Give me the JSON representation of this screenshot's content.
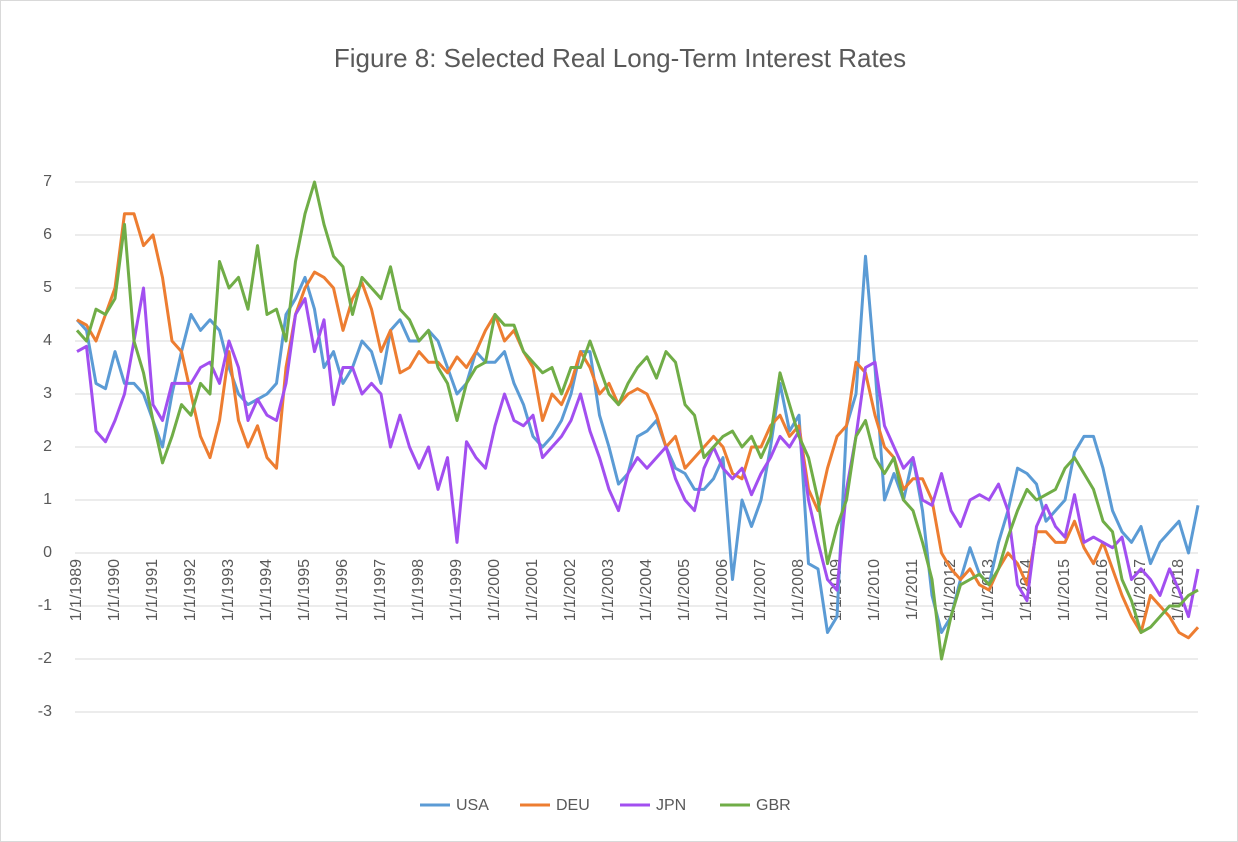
{
  "chart_data": {
    "type": "line",
    "title": "Figure 8: Selected Real Long-Term Interest Rates",
    "categories": [
      "1/1/1989",
      null,
      null,
      null,
      "1/1/1990",
      null,
      null,
      null,
      "1/1/1991",
      null,
      null,
      null,
      "1/1/1992",
      null,
      null,
      null,
      "1/1/1993",
      null,
      null,
      null,
      "1/1/1994",
      null,
      null,
      null,
      "1/1/1995",
      null,
      null,
      null,
      "1/1/1996",
      null,
      null,
      null,
      "1/1/1997",
      null,
      null,
      null,
      "1/1/1998",
      null,
      null,
      null,
      "1/1/1999",
      null,
      null,
      null,
      "1/1/2000",
      null,
      null,
      null,
      "1/1/2001",
      null,
      null,
      null,
      "1/1/2002",
      null,
      null,
      null,
      "1/1/2003",
      null,
      null,
      null,
      "1/1/2004",
      null,
      null,
      null,
      "1/1/2005",
      null,
      null,
      null,
      "1/1/2006",
      null,
      null,
      null,
      "1/1/2007",
      null,
      null,
      null,
      "1/1/2008",
      null,
      null,
      null,
      "1/1/2009",
      null,
      null,
      null,
      "1/1/2010",
      null,
      null,
      null,
      "1/1/2011",
      null,
      null,
      null,
      "1/1/2012",
      null,
      null,
      null,
      "1/1/2013",
      null,
      null,
      null,
      "1/1/2014",
      null,
      null,
      null,
      "1/1/2015",
      null,
      null,
      null,
      "1/1/2016",
      null,
      null,
      null,
      "1/1/2017",
      null,
      null,
      null,
      "1/1/2018",
      null,
      null
    ],
    "series": [
      {
        "name": "USA",
        "color": "#5b9bd5",
        "values": [
          4.4,
          4.2,
          3.2,
          3.1,
          3.8,
          3.2,
          3.2,
          3.0,
          2.5,
          2.0,
          3.0,
          3.8,
          4.5,
          4.2,
          4.4,
          4.2,
          3.5,
          3.0,
          2.8,
          2.9,
          3.0,
          3.2,
          4.5,
          4.8,
          5.2,
          4.6,
          3.5,
          3.8,
          3.2,
          3.5,
          4.0,
          3.8,
          3.2,
          4.2,
          4.4,
          4.0,
          4.0,
          4.2,
          4.0,
          3.5,
          3.0,
          3.2,
          3.8,
          3.6,
          3.6,
          3.8,
          3.2,
          2.8,
          2.2,
          2.0,
          2.2,
          2.5,
          3.0,
          3.8,
          3.8,
          2.6,
          2.0,
          1.3,
          1.5,
          2.2,
          2.3,
          2.5,
          2.0,
          1.6,
          1.5,
          1.2,
          1.2,
          1.4,
          1.8,
          -0.5,
          1.0,
          0.5,
          1.0,
          2.0,
          3.2,
          2.3,
          2.6,
          -0.2,
          -0.3,
          -1.5,
          -1.2,
          2.4,
          3.0,
          5.6,
          3.5,
          1.0,
          1.5,
          1.0,
          1.8,
          0.8,
          -0.8,
          -1.5,
          -1.2,
          -0.5,
          0.1,
          -0.4,
          -0.6,
          0.2,
          0.8,
          1.6,
          1.5,
          1.3,
          0.6,
          0.8,
          1.0,
          1.9,
          2.2,
          2.2,
          1.6,
          0.8,
          0.4,
          0.2,
          0.5,
          -0.2,
          0.2,
          0.4,
          0.6,
          0.0,
          0.9
        ]
      },
      {
        "name": "DEU",
        "color": "#ed7d31",
        "values": [
          4.4,
          4.3,
          4.0,
          4.5,
          5.0,
          6.4,
          6.4,
          5.8,
          6.0,
          5.2,
          4.0,
          3.8,
          3.0,
          2.2,
          1.8,
          2.5,
          3.8,
          2.5,
          2.0,
          2.4,
          1.8,
          1.6,
          3.5,
          4.5,
          5.0,
          5.3,
          5.2,
          5.0,
          4.2,
          4.8,
          5.1,
          4.6,
          3.8,
          4.2,
          3.4,
          3.5,
          3.8,
          3.6,
          3.6,
          3.4,
          3.7,
          3.5,
          3.8,
          4.2,
          4.5,
          4.0,
          4.2,
          3.8,
          3.5,
          2.5,
          3.0,
          2.8,
          3.2,
          3.8,
          3.5,
          3.0,
          3.2,
          2.8,
          3.0,
          3.1,
          3.0,
          2.6,
          2.0,
          2.2,
          1.6,
          1.8,
          2.0,
          2.2,
          2.0,
          1.5,
          1.4,
          2.0,
          2.0,
          2.4,
          2.6,
          2.2,
          2.4,
          1.2,
          0.8,
          1.6,
          2.2,
          2.4,
          3.6,
          3.4,
          2.6,
          2.0,
          1.8,
          1.2,
          1.4,
          1.4,
          1.0,
          0.0,
          -0.3,
          -0.5,
          -0.3,
          -0.6,
          -0.7,
          -0.3,
          0.0,
          -0.2,
          -0.6,
          0.4,
          0.4,
          0.2,
          0.2,
          0.6,
          0.1,
          -0.2,
          0.2,
          -0.3,
          -0.8,
          -1.2,
          -1.5,
          -0.8,
          -1.0,
          -1.2,
          -1.5,
          -1.6,
          -1.4
        ]
      },
      {
        "name": "JPN",
        "color": "#a24ff0",
        "values": [
          3.8,
          3.9,
          2.3,
          2.1,
          2.5,
          3.0,
          4.0,
          5.0,
          2.8,
          2.5,
          3.2,
          3.2,
          3.2,
          3.5,
          3.6,
          3.2,
          4.0,
          3.5,
          2.5,
          2.9,
          2.6,
          2.5,
          3.2,
          4.5,
          4.8,
          3.8,
          4.4,
          2.8,
          3.5,
          3.5,
          3.0,
          3.2,
          3.0,
          2.0,
          2.6,
          2.0,
          1.6,
          2.0,
          1.2,
          1.8,
          0.2,
          2.1,
          1.8,
          1.6,
          2.4,
          3.0,
          2.5,
          2.4,
          2.6,
          1.8,
          2.0,
          2.2,
          2.5,
          3.0,
          2.3,
          1.8,
          1.2,
          0.8,
          1.5,
          1.8,
          1.6,
          1.8,
          2.0,
          1.4,
          1.0,
          0.8,
          1.6,
          2.0,
          1.6,
          1.4,
          1.6,
          1.1,
          1.5,
          1.8,
          2.2,
          2.0,
          2.3,
          1.0,
          0.2,
          -0.5,
          -0.7,
          1.2,
          2.2,
          3.5,
          3.6,
          2.4,
          2.0,
          1.6,
          1.8,
          1.0,
          0.9,
          1.5,
          0.8,
          0.5,
          1.0,
          1.1,
          1.0,
          1.3,
          0.8,
          -0.6,
          -0.9,
          0.5,
          0.9,
          0.5,
          0.3,
          1.1,
          0.2,
          0.3,
          0.2,
          0.1,
          0.3,
          -0.5,
          -0.3,
          -0.5,
          -0.8,
          -0.3,
          -0.7,
          -1.2,
          -0.3
        ]
      },
      {
        "name": "GBR",
        "color": "#70ad47",
        "values": [
          4.2,
          4.0,
          4.6,
          4.5,
          4.8,
          6.2,
          4.0,
          3.4,
          2.5,
          1.7,
          2.2,
          2.8,
          2.6,
          3.2,
          3.0,
          5.5,
          5.0,
          5.2,
          4.6,
          5.8,
          4.5,
          4.6,
          4.0,
          5.5,
          6.4,
          7.0,
          6.2,
          5.6,
          5.4,
          4.5,
          5.2,
          5.0,
          4.8,
          5.4,
          4.6,
          4.4,
          4.0,
          4.2,
          3.5,
          3.2,
          2.5,
          3.2,
          3.5,
          3.6,
          4.5,
          4.3,
          4.3,
          3.8,
          3.6,
          3.4,
          3.5,
          3.0,
          3.5,
          3.5,
          4.0,
          3.5,
          3.0,
          2.8,
          3.2,
          3.5,
          3.7,
          3.3,
          3.8,
          3.6,
          2.8,
          2.6,
          1.8,
          2.0,
          2.2,
          2.3,
          2.0,
          2.2,
          1.8,
          2.2,
          3.4,
          2.8,
          2.2,
          1.8,
          1.0,
          -0.2,
          0.5,
          1.0,
          2.2,
          2.5,
          1.8,
          1.5,
          1.8,
          1.0,
          0.8,
          0.2,
          -0.5,
          -2.0,
          -1.2,
          -0.6,
          -0.5,
          -0.4,
          -0.6,
          -0.3,
          0.3,
          0.8,
          1.2,
          1.0,
          1.1,
          1.2,
          1.6,
          1.8,
          1.5,
          1.2,
          0.6,
          0.4,
          -0.5,
          -0.9,
          -1.5,
          -1.4,
          -1.2,
          -1.0,
          -1.0,
          -0.8,
          -0.7
        ]
      }
    ],
    "ylim": [
      -3,
      7
    ],
    "yticks": [
      -3,
      -2,
      -1,
      0,
      1,
      2,
      3,
      4,
      5,
      6,
      7
    ],
    "grid": true,
    "legend": "bottom"
  }
}
